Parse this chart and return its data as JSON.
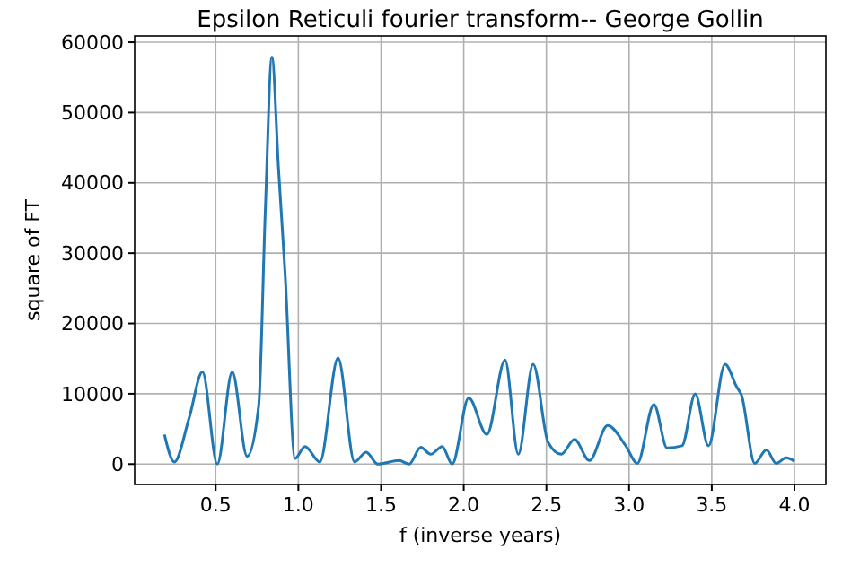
{
  "chart_data": {
    "type": "line",
    "title": "Epsilon Reticuli fourier transform-- George Gollin",
    "xlabel": "f (inverse years)",
    "ylabel": "square of FT",
    "xlim": [
      0.01,
      4.19
    ],
    "ylim": [
      -2900,
      60900
    ],
    "xticks": [
      0.5,
      {
        "value": 1,
        "label": "1.0"
      },
      1.5,
      {
        "value": 2,
        "label": "2.0"
      },
      2.5,
      {
        "value": 3,
        "label": "3.0"
      },
      3.5,
      {
        "value": 4,
        "label": "4.0"
      }
    ],
    "yticks": [
      0,
      10000,
      20000,
      30000,
      40000,
      50000,
      60000
    ],
    "grid": true,
    "series": [
      {
        "color": "#1f77b4",
        "x": [
          0.19,
          0.25,
          0.34,
          0.42,
          0.51,
          0.6,
          0.69,
          0.76,
          0.8,
          0.84,
          0.88,
          0.92,
          0.98,
          1.04,
          1.13,
          1.24,
          1.34,
          1.41,
          1.48,
          1.61,
          1.67,
          1.74,
          1.8,
          1.87,
          1.93,
          2.03,
          2.14,
          2.25,
          2.33,
          2.42,
          2.51,
          2.59,
          2.67,
          2.76,
          2.87,
          2.98,
          3.05,
          3.15,
          3.23,
          3.32,
          3.4,
          3.48,
          3.58,
          3.65,
          3.68,
          3.76,
          3.83,
          3.89,
          3.95,
          4.0
        ],
        "values": [
          4200,
          300,
          6600,
          13100,
          0,
          13100,
          1100,
          8300,
          36000,
          57900,
          42000,
          27000,
          800,
          2500,
          300,
          15100,
          300,
          1700,
          0,
          500,
          0,
          2400,
          1400,
          2500,
          0,
          9400,
          4200,
          14800,
          1400,
          14200,
          3100,
          1400,
          3500,
          500,
          5500,
          2600,
          100,
          8500,
          2300,
          2600,
          10000,
          2600,
          14200,
          11000,
          9800,
          100,
          2000,
          100,
          900,
          400
        ]
      }
    ]
  }
}
